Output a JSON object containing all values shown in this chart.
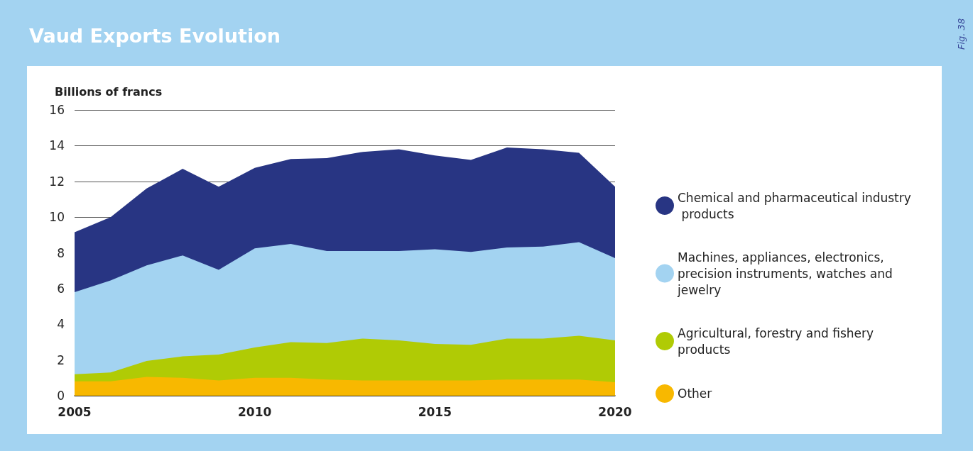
{
  "chart_data": {
    "type": "area",
    "title": "Vaud Exports Evolution",
    "ylabel": "Billions of francs",
    "annotations": [
      "Fig. 38"
    ],
    "x": [
      2005,
      2006,
      2007,
      2008,
      2009,
      2010,
      2011,
      2012,
      2013,
      2014,
      2015,
      2016,
      2017,
      2018,
      2019,
      2020
    ],
    "stacked": true,
    "series": [
      {
        "name": "Other",
        "color": "#f8b800",
        "values": [
          0.8,
          0.8,
          1.05,
          1.0,
          0.85,
          1.0,
          1.0,
          0.9,
          0.85,
          0.85,
          0.85,
          0.85,
          0.9,
          0.9,
          0.9,
          0.75
        ]
      },
      {
        "name": "Agricultural, forestry and fishery products",
        "color": "#b0cb05",
        "values": [
          0.4,
          0.5,
          0.9,
          1.2,
          1.45,
          1.7,
          2.0,
          2.05,
          2.35,
          2.25,
          2.05,
          2.0,
          2.3,
          2.3,
          2.45,
          2.35
        ]
      },
      {
        "name": "Machines, appliances, electronics, precision instruments, watches and jewelry",
        "color": "#a3d3f1",
        "values": [
          4.6,
          5.15,
          5.35,
          5.65,
          4.75,
          5.55,
          5.5,
          5.15,
          4.9,
          5.0,
          5.3,
          5.2,
          5.1,
          5.15,
          5.25,
          4.6
        ]
      },
      {
        "name": "Chemical and pharmaceutical industry products",
        "color": "#283583",
        "values": [
          3.35,
          3.55,
          4.3,
          4.85,
          4.65,
          4.5,
          4.75,
          5.2,
          5.55,
          5.7,
          5.25,
          5.15,
          5.6,
          5.45,
          5.0,
          4.0
        ]
      }
    ],
    "xlim": [
      2005,
      2020
    ],
    "xticks": [
      2005,
      2010,
      2015,
      2020
    ],
    "ylim": [
      0,
      16
    ],
    "yticks": [
      0,
      2,
      4,
      6,
      8,
      10,
      12,
      14,
      16
    ],
    "grid": "y",
    "legend": "right"
  }
}
